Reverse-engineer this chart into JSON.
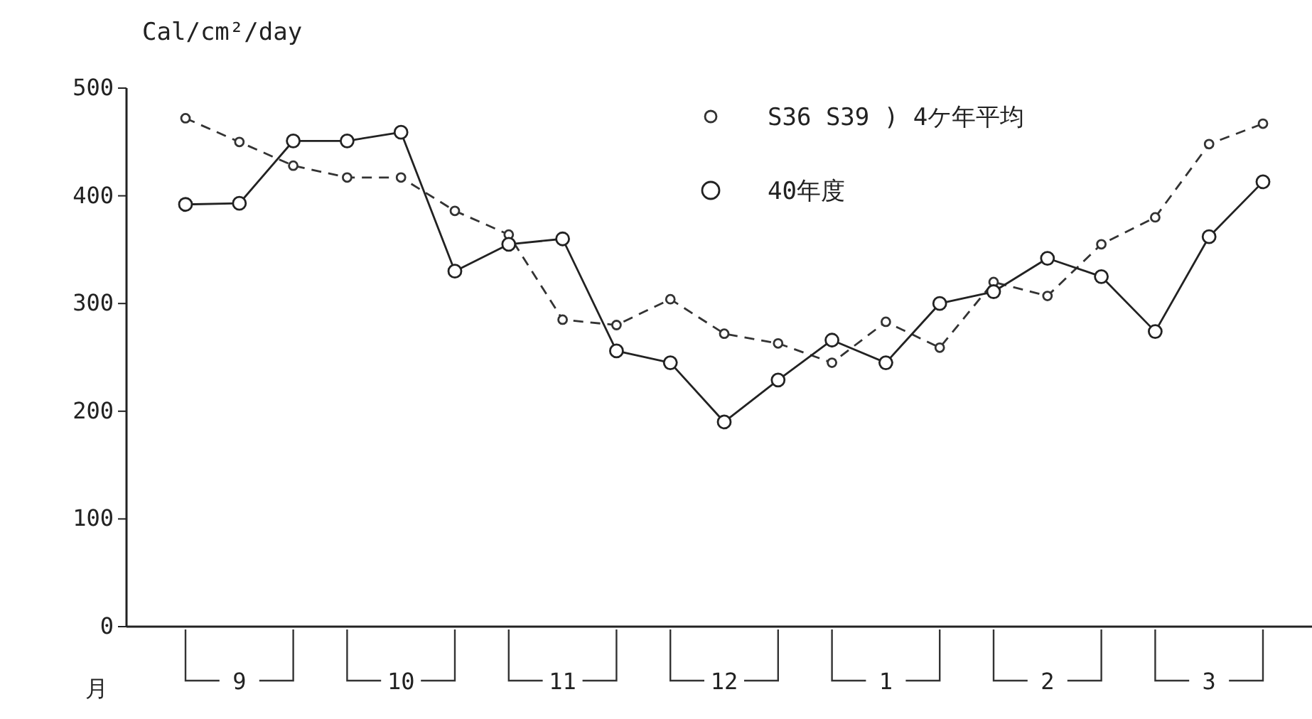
{
  "chart_data": {
    "type": "line",
    "ylabel": "Cal/cm²/day",
    "xlabel": "月",
    "categories": [
      null,
      "9",
      null,
      null,
      "10",
      null,
      null,
      "11",
      null,
      null,
      "12",
      null,
      null,
      "1",
      null,
      null,
      "2",
      null,
      null,
      "3",
      null
    ],
    "series": [
      {
        "name": "S36 S39 ) 4ケ年平均",
        "color": "#333333",
        "line_style": "dashed",
        "marker": "circle",
        "values": [
          472,
          450,
          428,
          417,
          417,
          386,
          364,
          285,
          280,
          304,
          272,
          263,
          245,
          283,
          259,
          320,
          307,
          355,
          380,
          448,
          467
        ]
      },
      {
        "name": "40年度",
        "color": "#222222",
        "line_style": "solid",
        "marker": "circle",
        "values": [
          392,
          393,
          451,
          451,
          459,
          330,
          355,
          360,
          256,
          245,
          190,
          229,
          266,
          245,
          300,
          311,
          342,
          325,
          274,
          362,
          413
        ]
      }
    ],
    "ylim": [
      0,
      500
    ],
    "yticks": [
      0,
      100,
      200,
      300,
      400,
      500
    ],
    "grid": false,
    "legend": "top right"
  }
}
